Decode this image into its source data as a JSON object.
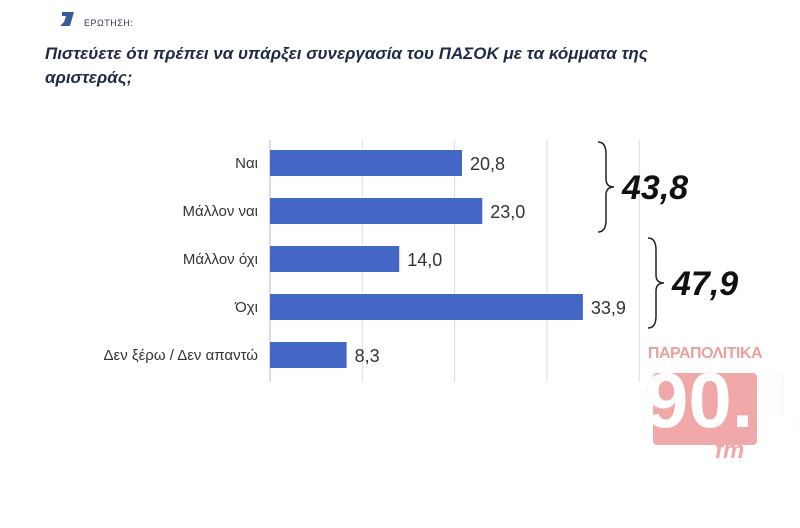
{
  "header": {
    "question_label": "ΕΡΩΤΗΣΗ:",
    "title": "Πιστεύετε ότι πρέπει να υπάρξει συνεργασία του ΠΑΣΟΚ με τα κόμματα της αριστεράς;"
  },
  "chart_data": {
    "type": "bar",
    "orientation": "horizontal",
    "categories": [
      "Ναι",
      "Μάλλον ναι",
      "Μάλλον όχι",
      "Όχι",
      "Δεν ξέρω / Δεν απαντώ"
    ],
    "values": [
      20.8,
      23.0,
      14.0,
      33.9,
      8.3
    ],
    "value_labels": [
      "20,8",
      "23,0",
      "14,0",
      "33,9",
      "8,3"
    ],
    "xlim": [
      0,
      40
    ],
    "grid": true,
    "bar_color": "#4466c4",
    "groups": [
      {
        "label": "43,8",
        "categories": [
          "Ναι",
          "Μάλλον ναι"
        ]
      },
      {
        "label": "47,9",
        "categories": [
          "Μάλλον όχι",
          "Όχι"
        ]
      }
    ]
  },
  "watermark": {
    "brand": "ΠΑΡΑΠΟΛΙΤΙΚΑ",
    "frequency": "90.1",
    "suffix": "fm",
    "color": "#f0a8a8"
  }
}
